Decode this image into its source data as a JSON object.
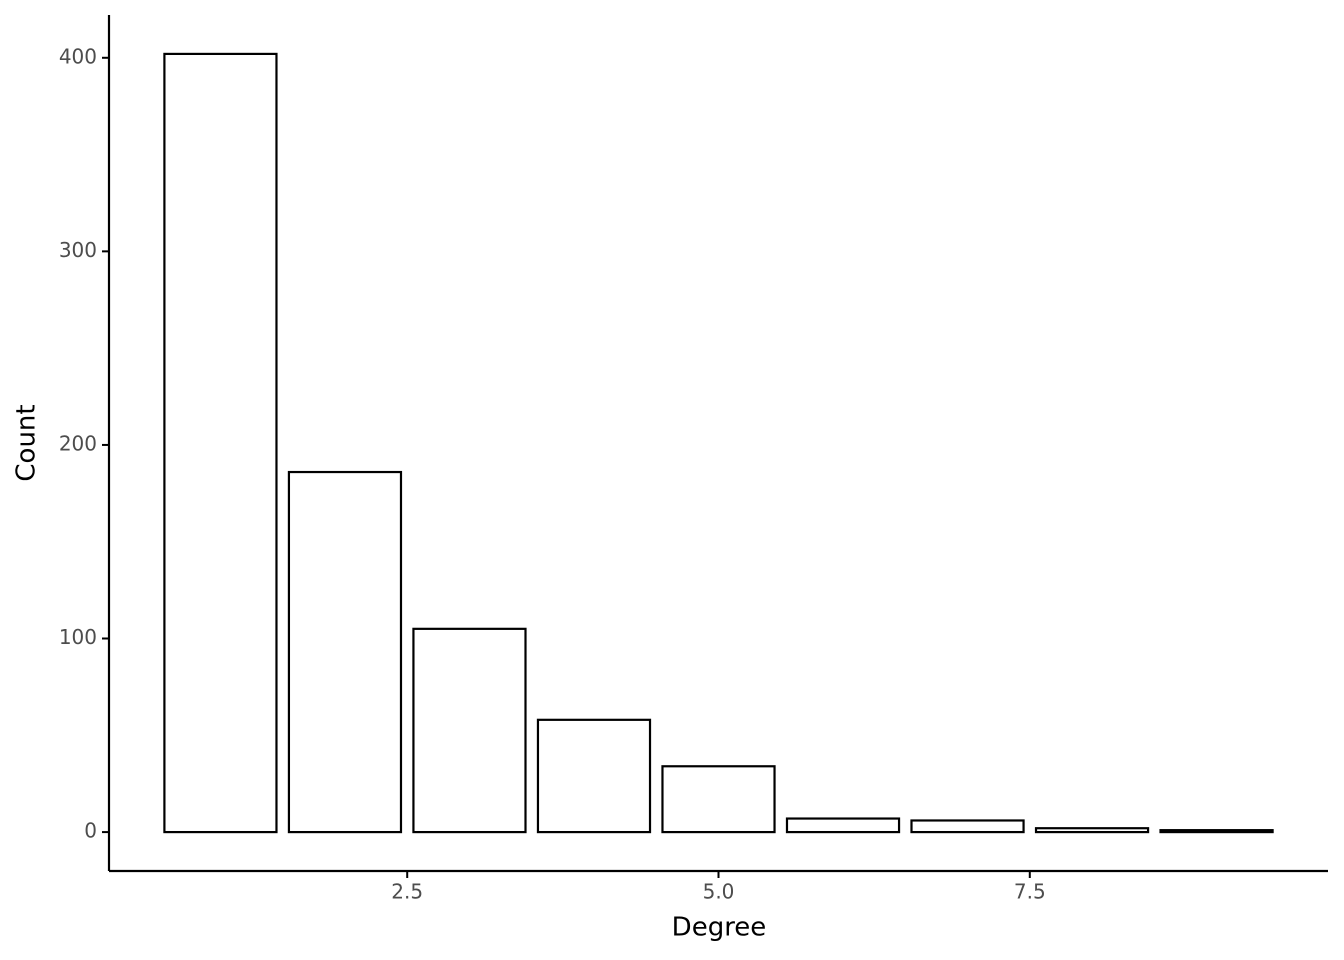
{
  "chart_data": {
    "type": "bar",
    "x_label": "Degree",
    "y_label": "Count",
    "x": [
      1,
      2,
      3,
      4,
      5,
      6,
      7,
      8,
      9
    ],
    "values": [
      402,
      186,
      105,
      58,
      34,
      7,
      6,
      2,
      1
    ],
    "fill": "#ffffff",
    "edgecolor": "#000000",
    "xlim": [
      0.105,
      9.895
    ],
    "xticks": [
      2.5,
      {
        "value": 5,
        "label": "5.0"
      },
      7.5
    ],
    "ylim": [
      -20.1,
      422.1
    ],
    "yticks": [
      0,
      100,
      200,
      300,
      400
    ],
    "grid": false
  }
}
